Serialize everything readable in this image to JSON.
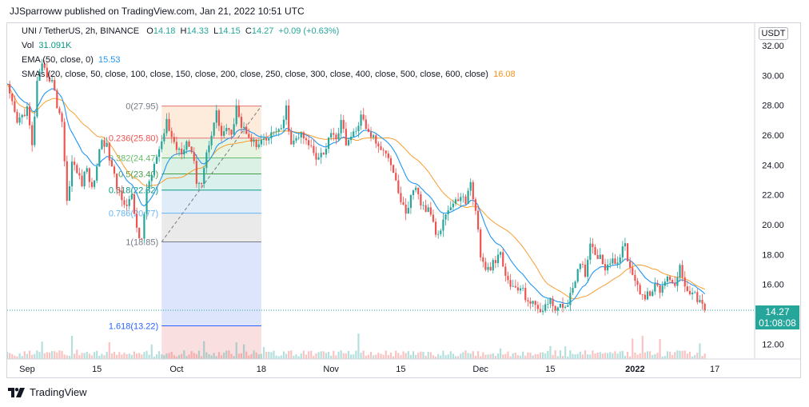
{
  "header": {
    "published_text": "JJSparroww published on TradingView.com, Jan 21, 2022 10:51 UTC"
  },
  "legend": {
    "symbol": "UNI / TetherUS, 2h, BINANCE",
    "open_label": "O",
    "open": "14.18",
    "high_label": "H",
    "high": "14.33",
    "low_label": "L",
    "low": "14.15",
    "close_label": "C",
    "close": "14.27",
    "change": "+0.09 (+0.63%)",
    "vol_label": "Vol",
    "vol_value": "31.091K",
    "ema_label": "EMA (50, close, 0)",
    "ema_value": "15.53",
    "smas_label": "SMAs (20, close, 50, close, 100, close, 150, close, 200, close, 250, close, 300, close, 400, close, 500, close, 600, close)",
    "smas_value": "16.08"
  },
  "price_axis": {
    "currency": "USDT",
    "last_price": "14.27",
    "countdown": "01:08:08"
  },
  "footer": {
    "brand": "TradingView"
  },
  "colors": {
    "up": "#26a69a",
    "down": "#ef5350",
    "ema": "#2196f3",
    "sma": "#f7931a",
    "fib_line": "#787b86"
  },
  "chart_data": {
    "type": "candlestick",
    "title": "UNI / TetherUS, 2h, BINANCE",
    "ylim": [
      11,
      33.5
    ],
    "y_ticks": [
      "12.00",
      "14.00",
      "16.00",
      "18.00",
      "20.00",
      "22.00",
      "24.00",
      "26.00",
      "28.00",
      "30.00",
      "32.00"
    ],
    "x_ticks": [
      {
        "label": "Sep",
        "day": 0
      },
      {
        "label": "15",
        "day": 14
      },
      {
        "label": "Oct",
        "day": 30
      },
      {
        "label": "18",
        "day": 47
      },
      {
        "label": "Nov",
        "day": 61
      },
      {
        "label": "15",
        "day": 75
      },
      {
        "label": "Dec",
        "day": 91
      },
      {
        "label": "15",
        "day": 105
      },
      {
        "label": "2022",
        "day": 122
      },
      {
        "label": "17",
        "day": 138
      }
    ],
    "x_range_days": [
      -4,
      146
    ],
    "price_path": [
      [
        -4,
        29.2
      ],
      [
        -2,
        26.8
      ],
      [
        0,
        27.8
      ],
      [
        1,
        25.2
      ],
      [
        2,
        29.5
      ],
      [
        3,
        30.5
      ],
      [
        5,
        29.6
      ],
      [
        6,
        28.0
      ],
      [
        7,
        27.0
      ],
      [
        8,
        21.5
      ],
      [
        9,
        24.2
      ],
      [
        11,
        22.8
      ],
      [
        12,
        23.8
      ],
      [
        13,
        22.3
      ],
      [
        14,
        24.0
      ],
      [
        15,
        25.8
      ],
      [
        16,
        25.2
      ],
      [
        17,
        23.8
      ],
      [
        18,
        22.5
      ],
      [
        20,
        21.3
      ],
      [
        21,
        21.8
      ],
      [
        22,
        19.8
      ],
      [
        23,
        18.8
      ],
      [
        24,
        22.5
      ],
      [
        25,
        23.3
      ],
      [
        26,
        24.5
      ],
      [
        27,
        25.3
      ],
      [
        28,
        27.0
      ],
      [
        29,
        25.8
      ],
      [
        30,
        25.2
      ],
      [
        31,
        25.0
      ],
      [
        32,
        25.6
      ],
      [
        33,
        25.0
      ],
      [
        34,
        23.0
      ],
      [
        35,
        22.8
      ],
      [
        36,
        24.8
      ],
      [
        37,
        26.2
      ],
      [
        38,
        27.5
      ],
      [
        39,
        26.0
      ],
      [
        40,
        26.5
      ],
      [
        41,
        25.8
      ],
      [
        42,
        28.2
      ],
      [
        43,
        26.5
      ],
      [
        44,
        26.3
      ],
      [
        45,
        25.8
      ],
      [
        46,
        25.2
      ],
      [
        47,
        25.5
      ],
      [
        48,
        25.6
      ],
      [
        49,
        26.0
      ],
      [
        50,
        26.4
      ],
      [
        51,
        26.2
      ],
      [
        52,
        27.8
      ],
      [
        53,
        25.2
      ],
      [
        54,
        25.8
      ],
      [
        55,
        26.0
      ],
      [
        56,
        25.5
      ],
      [
        57,
        25.2
      ],
      [
        58,
        24.6
      ],
      [
        59,
        24.8
      ],
      [
        60,
        25.0
      ],
      [
        61,
        26.4
      ],
      [
        62,
        25.8
      ],
      [
        63,
        26.8
      ],
      [
        64,
        25.6
      ],
      [
        65,
        25.8
      ],
      [
        66,
        26.2
      ],
      [
        67,
        27.5
      ],
      [
        68,
        26.3
      ],
      [
        69,
        26.0
      ],
      [
        70,
        25.6
      ],
      [
        71,
        24.8
      ],
      [
        72,
        25.0
      ],
      [
        73,
        24.2
      ],
      [
        74,
        23.0
      ],
      [
        75,
        21.5
      ],
      [
        76,
        20.8
      ],
      [
        77,
        21.8
      ],
      [
        78,
        22.3
      ],
      [
        79,
        21.4
      ],
      [
        80,
        21.0
      ],
      [
        81,
        20.8
      ],
      [
        82,
        19.5
      ],
      [
        83,
        19.8
      ],
      [
        84,
        20.8
      ],
      [
        85,
        21.2
      ],
      [
        86,
        21.5
      ],
      [
        87,
        22.0
      ],
      [
        88,
        21.5
      ],
      [
        89,
        22.8
      ],
      [
        90,
        21.0
      ],
      [
        91,
        18.0
      ],
      [
        92,
        16.8
      ],
      [
        93,
        17.2
      ],
      [
        94,
        17.5
      ],
      [
        95,
        18.0
      ],
      [
        96,
        16.5
      ],
      [
        97,
        16.0
      ],
      [
        98,
        15.6
      ],
      [
        99,
        15.8
      ],
      [
        100,
        15.2
      ],
      [
        101,
        14.8
      ],
      [
        102,
        14.5
      ],
      [
        103,
        14.3
      ],
      [
        104,
        14.6
      ],
      [
        105,
        14.8
      ],
      [
        106,
        14.5
      ],
      [
        107,
        14.4
      ],
      [
        108,
        14.6
      ],
      [
        109,
        15.2
      ],
      [
        110,
        16.0
      ],
      [
        111,
        17.5
      ],
      [
        112,
        16.8
      ],
      [
        113,
        18.8
      ],
      [
        114,
        18.2
      ],
      [
        115,
        17.8
      ],
      [
        116,
        17.2
      ],
      [
        117,
        17.6
      ],
      [
        118,
        17.3
      ],
      [
        119,
        18.0
      ],
      [
        120,
        18.6
      ],
      [
        121,
        17.0
      ],
      [
        122,
        16.5
      ],
      [
        123,
        15.5
      ],
      [
        124,
        15.0
      ],
      [
        125,
        15.5
      ],
      [
        126,
        15.8
      ],
      [
        127,
        15.6
      ],
      [
        128,
        16.2
      ],
      [
        129,
        16.5
      ],
      [
        130,
        16.0
      ],
      [
        131,
        17.2
      ],
      [
        132,
        16.0
      ],
      [
        133,
        15.6
      ],
      [
        134,
        15.2
      ],
      [
        135,
        14.9
      ],
      [
        136,
        14.27
      ]
    ],
    "fib_retracement": {
      "start_day": 27,
      "end_day": 47,
      "price_start": 18.85,
      "price_end": 27.95,
      "levels": [
        {
          "label": "0(27.95)",
          "price": 27.95,
          "fill": "#f8d9d9",
          "line": "#e57373",
          "text_color": "#787b86"
        },
        {
          "label": "0.236(25.80)",
          "price": 25.8,
          "fill": "#fde8d6",
          "line": "#e57373",
          "text_color": "#ef5350"
        },
        {
          "label": "0.382(24.47)",
          "price": 24.47,
          "fill": "#e4f2dd",
          "line": "#66bb6a",
          "text_color": "#66bb6a"
        },
        {
          "label": "0.5(23.40)",
          "price": 23.4,
          "fill": "#d5eee1",
          "line": "#43a047",
          "text_color": "#43a047"
        },
        {
          "label": "0.618(22.32)",
          "price": 22.32,
          "fill": "#d2ede9",
          "line": "#089981",
          "text_color": "#089981"
        },
        {
          "label": "0.786(20.77)",
          "price": 20.77,
          "fill": "#dbeaf8",
          "line": "#64b5f6",
          "text_color": "#64b5f6"
        },
        {
          "label": "1(18.85)",
          "price": 18.85,
          "fill": "#e6e6e6",
          "line": "#787b86",
          "text_color": "#787b86"
        },
        {
          "label": "1.618(13.22)",
          "price": 13.22,
          "fill": "#d6e0fb",
          "line": "#2962ff",
          "text_color": "#2962ff"
        }
      ]
    },
    "last_price": 14.27
  }
}
